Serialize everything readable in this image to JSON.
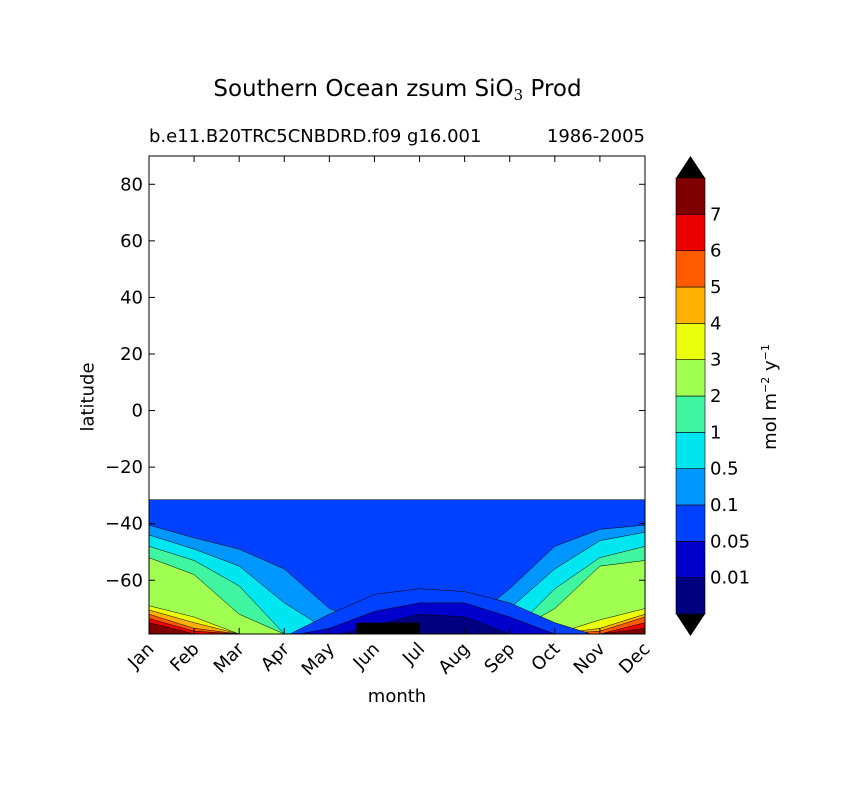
{
  "chart_data": {
    "type": "heatmap",
    "title": "Southern Ocean zsum SiO",
    "title_subscript": "3",
    "title_suffix": "Prod",
    "case_name": "b.e11.B20TRC5CNBDRD.f09 g16.001",
    "period": "1986-2005",
    "xlabel": "month",
    "ylabel": "latitude",
    "ylim": [
      -79,
      90
    ],
    "yticks": [
      80,
      60,
      40,
      20,
      0,
      -20,
      -40,
      -60
    ],
    "ytick_labels": [
      "80",
      "60",
      "40",
      "20",
      "0",
      "−20",
      "−40",
      "−60"
    ],
    "months": [
      "Jan",
      "Feb",
      "Mar",
      "Apr",
      "May",
      "Jun",
      "Jul",
      "Aug",
      "Sep",
      "Oct",
      "Nov",
      "Dec"
    ],
    "colorbar": {
      "label_main": "mol m",
      "label_exp1": "−2",
      "label_unit2": "y",
      "label_exp2": "−1",
      "levels": [
        "0.01",
        "0.05",
        "0.1",
        "0.5",
        "1",
        "2",
        "3",
        "4",
        "5",
        "6",
        "7"
      ],
      "colors": [
        "#000080",
        "#0000cd",
        "#0040ff",
        "#0096ff",
        "#00e6f0",
        "#40f5a0",
        "#a0ff50",
        "#eaff0a",
        "#ffb000",
        "#ff5a00",
        "#ee0000",
        "#800000"
      ],
      "extend": "both",
      "under_color": "#000000",
      "over_color": "#000000"
    },
    "zero_region_lat": -31.5,
    "bands": [
      {
        "level_index": 2,
        "boundary": [
          -31.5,
          -31.5,
          -31.5,
          -31.5,
          -31.5,
          -31.5,
          -31.5,
          -31.5,
          -31.5,
          -31.5,
          -31.5,
          -31.5
        ]
      },
      {
        "level_index": 3,
        "boundary": [
          -40.5,
          -45,
          -49,
          -56,
          -70,
          -76,
          -78,
          -76,
          -63,
          -48,
          -42,
          -40.5
        ]
      },
      {
        "level_index": 4,
        "boundary": [
          -44,
          -49,
          -55,
          -68,
          -78,
          -79,
          -79,
          -79,
          -70,
          -56,
          -46,
          -43
        ]
      },
      {
        "level_index": 5,
        "boundary": [
          -48,
          -53,
          -62,
          -79,
          -79,
          -79,
          -79,
          -79,
          -79,
          -63,
          -52,
          -48
        ]
      },
      {
        "level_index": 6,
        "boundary": [
          -52,
          -58,
          -72,
          -79,
          -79,
          -79,
          -79,
          -79,
          -79,
          -70,
          -55,
          -53
        ]
      },
      {
        "level_index": 7,
        "boundary": [
          -69,
          -73,
          -79,
          -79,
          -79,
          -79,
          -79,
          -79,
          -79,
          -79,
          -74,
          -70
        ]
      },
      {
        "level_index": 8,
        "boundary": [
          -70.5,
          -75,
          -79,
          -79,
          -79,
          -79,
          -79,
          -79,
          -79,
          -79,
          -77,
          -72
        ]
      },
      {
        "level_index": 9,
        "boundary": [
          -72,
          -77,
          -79,
          -79,
          -79,
          -79,
          -79,
          -79,
          -79,
          -79,
          -78,
          -73
        ]
      },
      {
        "level_index": 10,
        "boundary": [
          -73.5,
          -78,
          -79,
          -79,
          -79,
          -79,
          -79,
          -79,
          -79,
          -79,
          -79,
          -75
        ]
      },
      {
        "level_index": 11,
        "boundary": [
          -75,
          -79,
          -79,
          -79,
          -79,
          -79,
          -79,
          -79,
          -79,
          -79,
          -79,
          -77
        ]
      }
    ],
    "low_bands": [
      {
        "level_index": 2,
        "boundary": [
          -90,
          -90,
          -90,
          -80,
          -72,
          -65,
          -63,
          -64,
          -68,
          -75,
          -90,
          -90
        ]
      },
      {
        "level_index": 1,
        "boundary": [
          -90,
          -90,
          -90,
          -90,
          -77,
          -71,
          -68,
          -68,
          -73,
          -79,
          -90,
          -90
        ]
      },
      {
        "level_index": 0,
        "boundary": [
          -90,
          -90,
          -90,
          -90,
          -90,
          -76,
          -72,
          -73,
          -79,
          -90,
          -90,
          -90
        ]
      }
    ],
    "black_patch": {
      "lat_top": -75,
      "months_from": 4.6,
      "months_to": 6.0
    }
  }
}
